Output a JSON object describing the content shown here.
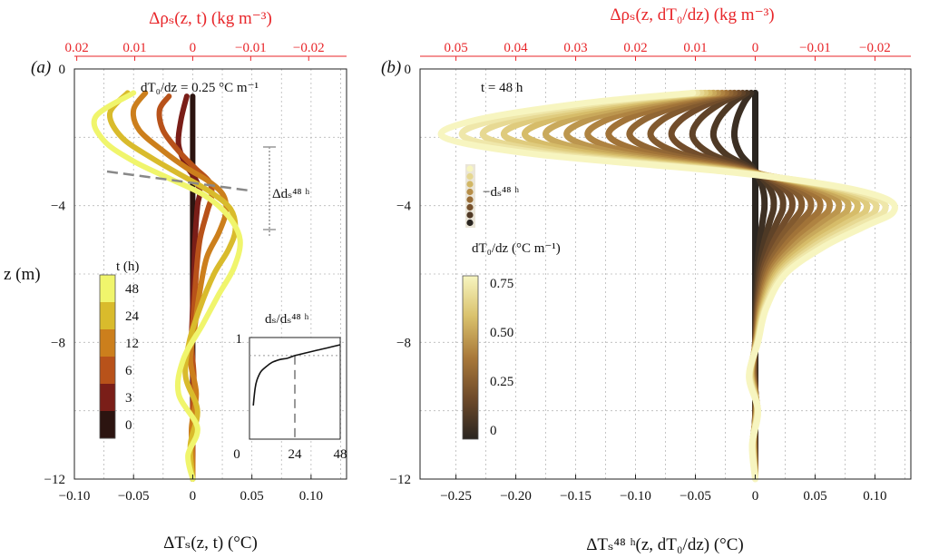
{
  "chart_data": [
    {
      "panel_label": "(a)",
      "type": "line",
      "annotation": "dT₀/dz = 0.25 °C m⁻¹",
      "xlabel": "ΔTₛ(z, t) (°C)",
      "ylabel": "z (m)",
      "top_xlabel": "Δρₛ(z, t) (kg m⁻³)",
      "xlim": [
        -0.1,
        0.13
      ],
      "ylim": [
        -12,
        0
      ],
      "xticks": [
        "−0.10",
        "−0.05",
        "0",
        "0.05",
        "0.10"
      ],
      "yticks": [
        "0",
        "−4",
        "−8",
        "−12"
      ],
      "top_xticks": [
        "0.02",
        "0.01",
        "0",
        "−0.01",
        "−0.02"
      ],
      "grid": true,
      "colorbar": {
        "title": "t (h)",
        "ticks": [
          "48",
          "24",
          "12",
          "6",
          "3",
          "0"
        ],
        "colors": [
          "#f0f56c",
          "#d9bb2c",
          "#cc7f1c",
          "#b8521a",
          "#7a1e18",
          "#2c1410"
        ]
      },
      "depth_marker_label": "Δdₛ⁴⁸ ʰ",
      "inset": {
        "ylabel": "dₛ/dₛ⁴⁸ ʰ",
        "xticks": [
          "0",
          "24",
          "48"
        ],
        "y_top_tick": "1",
        "x": [
          2,
          3,
          4,
          6,
          9,
          12,
          16,
          20,
          24,
          30,
          36,
          42,
          48
        ],
        "y": [
          0.55,
          0.68,
          0.74,
          0.8,
          0.84,
          0.87,
          0.89,
          0.9,
          0.92,
          0.94,
          0.96,
          0.98,
          1.0
        ]
      },
      "series": [
        {
          "t": 0,
          "color": "#2c1410",
          "z": [
            -0.8,
            -1.5,
            -2.5,
            -3.0,
            -3.5,
            -4.0,
            -5.0,
            -6.0,
            -7.0,
            -8.0,
            -9.0,
            -10.0,
            -11.0,
            -12.0
          ],
          "x": [
            0,
            0,
            0,
            0,
            0,
            0,
            0,
            0,
            0,
            0,
            0,
            0,
            0,
            0
          ]
        },
        {
          "t": 3,
          "color": "#7a1e18",
          "z": [
            -0.8,
            -1.5,
            -2.2,
            -2.8,
            -3.2,
            -3.6,
            -4.0,
            -5.0,
            -6.0,
            -7.0,
            -8.0,
            -9.0,
            -10.0,
            -11.0,
            -12.0
          ],
          "x": [
            -0.005,
            -0.01,
            -0.012,
            -0.006,
            0.002,
            0.006,
            0.004,
            0.002,
            0.001,
            0,
            -0.001,
            0,
            0.001,
            0,
            0
          ]
        },
        {
          "t": 6,
          "color": "#b8521a",
          "z": [
            -0.8,
            -1.2,
            -1.8,
            -2.4,
            -2.9,
            -3.3,
            -3.7,
            -4.2,
            -5.0,
            -6.0,
            -7.0,
            -8.0,
            -9.0,
            -10.0,
            -11.0,
            -12.0
          ],
          "x": [
            -0.02,
            -0.028,
            -0.025,
            -0.012,
            0.002,
            0.014,
            0.016,
            0.012,
            0.006,
            0.003,
            0.001,
            -0.001,
            0.001,
            0,
            0,
            0
          ]
        },
        {
          "t": 12,
          "color": "#cc7f1c",
          "z": [
            -0.7,
            -1.2,
            -1.8,
            -2.4,
            -2.9,
            -3.3,
            -3.7,
            -4.2,
            -4.8,
            -5.5,
            -6.5,
            -7.5,
            -8.5,
            -9.5,
            -10.5,
            -11.5,
            -12.0
          ],
          "x": [
            -0.04,
            -0.05,
            -0.045,
            -0.025,
            -0.005,
            0.014,
            0.026,
            0.028,
            0.022,
            0.012,
            0.006,
            0.002,
            -0.002,
            0.003,
            -0.001,
            0,
            0
          ]
        },
        {
          "t": 24,
          "color": "#d9bb2c",
          "z": [
            -0.7,
            -1.3,
            -2.0,
            -2.6,
            -3.1,
            -3.6,
            -4.1,
            -4.7,
            -5.3,
            -6.0,
            -7.0,
            -8.0,
            -9.0,
            -10.0,
            -11.0,
            -12.0
          ],
          "x": [
            -0.055,
            -0.07,
            -0.06,
            -0.035,
            -0.01,
            0.015,
            0.032,
            0.036,
            0.03,
            0.018,
            0.006,
            -0.003,
            -0.006,
            0.004,
            -0.002,
            0
          ]
        },
        {
          "t": 48,
          "color": "#f0f56c",
          "z": [
            -0.7,
            -1.4,
            -2.1,
            -2.7,
            -3.2,
            -3.7,
            -4.3,
            -5.0,
            -5.8,
            -6.6,
            -7.5,
            -8.5,
            -9.5,
            -10.5,
            -11.3,
            -12.0
          ],
          "x": [
            -0.05,
            -0.082,
            -0.075,
            -0.05,
            -0.02,
            0.01,
            0.03,
            0.04,
            0.035,
            0.022,
            0.008,
            -0.008,
            -0.012,
            0.004,
            -0.004,
            0
          ]
        }
      ]
    },
    {
      "panel_label": "(b)",
      "type": "line",
      "annotation": "t = 48 h",
      "xlabel": "ΔTₛ⁴⁸ ʰ(z, dT₀/dz) (°C)",
      "top_xlabel": "Δρₛ(z, dT₀/dz) (kg m⁻³)",
      "xlim": [
        -0.28,
        0.13
      ],
      "ylim": [
        -12,
        0
      ],
      "xticks": [
        "−0.25",
        "−0.20",
        "−0.15",
        "−0.10",
        "−0.05",
        "0",
        "0.05",
        "0.10"
      ],
      "yticks": [
        "0",
        "−4",
        "−8",
        "−12"
      ],
      "top_xticks": [
        "0.05",
        "0.04",
        "0.03",
        "0.02",
        "0.01",
        "0",
        "−0.01",
        "−0.02"
      ],
      "grid": true,
      "depth_marker_label": "−dₛ⁴⁸ ʰ",
      "colorbar": {
        "title": "dT₀/dz (°C m⁻¹)",
        "ticks": [
          "0.75",
          "0.50",
          "0.25",
          "0"
        ],
        "colors": [
          "#f7f5c0",
          "#d9c16c",
          "#a9793a",
          "#6e4a2a",
          "#2a2520"
        ]
      },
      "series_gradients": [
        0.0,
        0.05,
        0.1,
        0.15,
        0.2,
        0.25,
        0.3,
        0.35,
        0.4,
        0.45,
        0.5,
        0.55,
        0.6,
        0.65,
        0.7,
        0.75
      ]
    }
  ]
}
